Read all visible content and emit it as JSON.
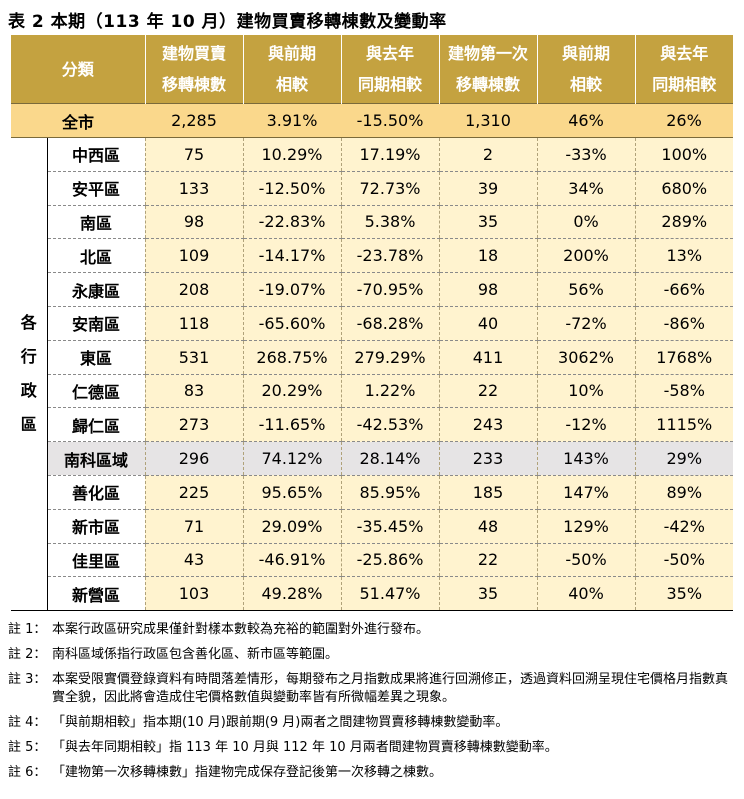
{
  "title": "表 2 本期（113 年 10 月）建物買賣移轉棟數及變動率",
  "header": {
    "category": "分類",
    "cols": [
      [
        "建物買賣",
        "移轉棟數"
      ],
      [
        "與前期",
        "相較"
      ],
      [
        "與去年",
        "同期相較"
      ],
      [
        "建物第一次",
        "移轉棟數"
      ],
      [
        "與前期",
        "相較"
      ],
      [
        "與去年",
        "同期相較"
      ]
    ]
  },
  "total": {
    "label": "全市",
    "values": [
      "2,285",
      "3.91%",
      "-15.50%",
      "1,310",
      "46%",
      "26%"
    ]
  },
  "group_label": [
    "各",
    "行",
    "政",
    "區"
  ],
  "rows": [
    {
      "name": "中西區",
      "values": [
        "75",
        "10.29%",
        "17.19%",
        "2",
        "-33%",
        "100%"
      ]
    },
    {
      "name": "安平區",
      "values": [
        "133",
        "-12.50%",
        "72.73%",
        "39",
        "34%",
        "680%"
      ]
    },
    {
      "name": "南區",
      "values": [
        "98",
        "-22.83%",
        "5.38%",
        "35",
        "0%",
        "289%"
      ]
    },
    {
      "name": "北區",
      "values": [
        "109",
        "-14.17%",
        "-23.78%",
        "18",
        "200%",
        "13%"
      ]
    },
    {
      "name": "永康區",
      "values": [
        "208",
        "-19.07%",
        "-70.95%",
        "98",
        "56%",
        "-66%"
      ]
    },
    {
      "name": "安南區",
      "values": [
        "118",
        "-65.60%",
        "-68.28%",
        "40",
        "-72%",
        "-86%"
      ]
    },
    {
      "name": "東區",
      "values": [
        "531",
        "268.75%",
        "279.29%",
        "411",
        "3062%",
        "1768%"
      ]
    },
    {
      "name": "仁德區",
      "values": [
        "83",
        "20.29%",
        "1.22%",
        "22",
        "10%",
        "-58%"
      ]
    },
    {
      "name": "歸仁區",
      "values": [
        "273",
        "-11.65%",
        "-42.53%",
        "243",
        "-12%",
        "1115%"
      ]
    },
    {
      "name": "南科區域",
      "values": [
        "296",
        "74.12%",
        "28.14%",
        "233",
        "143%",
        "29%"
      ]
    },
    {
      "name": "善化區",
      "values": [
        "225",
        "95.65%",
        "85.95%",
        "185",
        "147%",
        "89%"
      ]
    },
    {
      "name": "新市區",
      "values": [
        "71",
        "29.09%",
        "-35.45%",
        "48",
        "129%",
        "-42%"
      ]
    },
    {
      "name": "佳里區",
      "values": [
        "43",
        "-46.91%",
        "-25.86%",
        "22",
        "-50%",
        "-50%"
      ]
    },
    {
      "name": "新營區",
      "values": [
        "103",
        "49.28%",
        "51.47%",
        "35",
        "40%",
        "35%"
      ]
    }
  ],
  "notes": [
    {
      "key": "註 1：",
      "text": "本案行政區研究成果僅針對樣本數較為充裕的範圍對外進行發布。"
    },
    {
      "key": "註 2：",
      "text": "南科區域係指行政區包含善化區、新市區等範圍。"
    },
    {
      "key": "註 3：",
      "text": "本案受限實價登錄資料有時間落差情形，每期發布之月指數成果將進行回溯修正，透過資料回溯呈現住宅價格月指數真實全貌，因此將會造成住宅價格數值與變動率皆有所微幅差異之現象。"
    },
    {
      "key": "註 4：",
      "text": "「與前期相較」指本期(10 月)跟前期(9 月)兩者之間建物買賣移轉棟數變動率。"
    },
    {
      "key": "註 5：",
      "text": "「與去年同期相較」指 113 年 10 月與 112 年 10 月兩者間建物買賣移轉棟數變動率。"
    },
    {
      "key": "註 6：",
      "text": "「建物第一次移轉棟數」指建物完成保存登記後第一次移轉之棟數。"
    }
  ],
  "colors": {
    "header_bg": "#c4a240",
    "total_bg": "#fad88c",
    "cell_bg": "#fff3cf",
    "highlight_bg": "#e6e4e5"
  }
}
